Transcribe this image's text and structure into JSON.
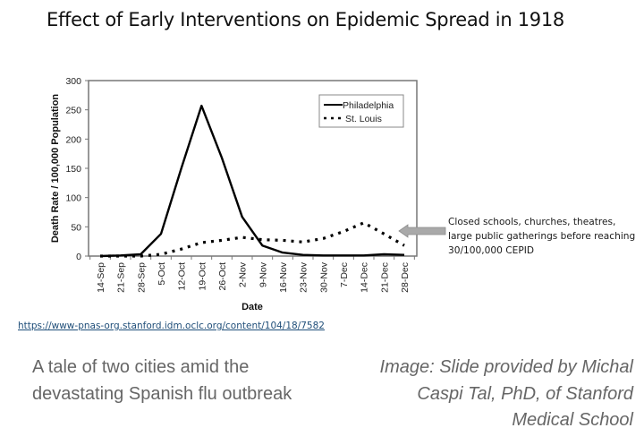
{
  "slide": {
    "title": "Effect of Early Interventions on Epidemic Spread in 1918",
    "annotation": "Closed schools, churches, theatres, large public gatherings before reaching 30/100,000 CEPID",
    "source_link": "https://www-pnas-org.stanford.idm.oclc.org/content/104/18/7582",
    "caption_left": "A tale of two cities amid the devastating Spanish flu outbreak",
    "caption_right": "Image: Slide provided by Michal Caspi Tal, PhD, of Stanford Medical School"
  },
  "chart_data": {
    "type": "line",
    "title": "Effect of Early Interventions on Epidemic Spread in 1918",
    "xlabel": "Date",
    "ylabel": "Death Rate / 100,000 Population",
    "ylim": [
      0,
      300
    ],
    "yticks": [
      0,
      50,
      100,
      150,
      200,
      250,
      300
    ],
    "grid": false,
    "legend": "top-right",
    "categories": [
      "14-Sep",
      "21-Sep",
      "28-Sep",
      "5-Oct",
      "12-Oct",
      "19-Oct",
      "26-Oct",
      "2-Nov",
      "9-Nov",
      "16-Nov",
      "23-Nov",
      "30-Nov",
      "7-Dec",
      "14-Dec",
      "21-Dec",
      "28-Dec"
    ],
    "series": [
      {
        "name": "Philadelphia",
        "style": "solid",
        "color": "#000000",
        "values": [
          0,
          1,
          3,
          38,
          150,
          257,
          168,
          67,
          18,
          6,
          2,
          1,
          1,
          1,
          3,
          2
        ]
      },
      {
        "name": "St. Louis",
        "style": "dotted",
        "color": "#000000",
        "values": [
          0,
          0,
          0,
          3,
          12,
          23,
          27,
          32,
          28,
          27,
          24,
          30,
          42,
          57,
          38,
          18
        ]
      }
    ],
    "annotation_arrow": {
      "direction": "left",
      "color": "#a9a9a9",
      "points_to": "St. Louis"
    }
  }
}
